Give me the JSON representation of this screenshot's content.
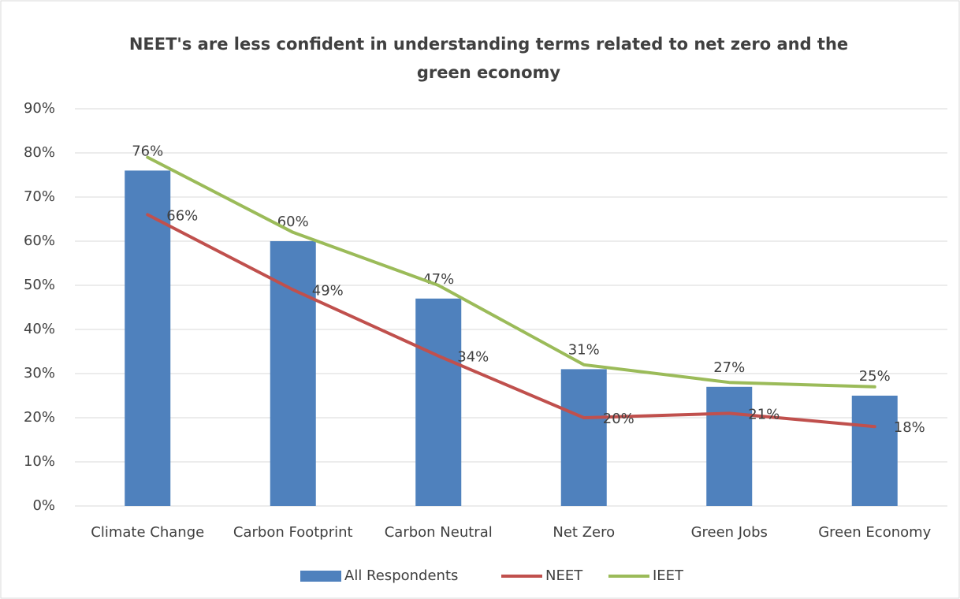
{
  "chart_data": {
    "type": "bar_line",
    "title": "NEET's are less confident in understanding terms related to net zero and the green economy",
    "categories": [
      "Climate Change",
      "Carbon Footprint",
      "Carbon Neutral",
      "Net Zero",
      "Green Jobs",
      "Green Economy"
    ],
    "series": [
      {
        "name": "All Respondents",
        "type": "bar",
        "color": "#4f81bd",
        "values": [
          76,
          60,
          47,
          31,
          27,
          25
        ],
        "value_labels": [
          "76%",
          "60%",
          "47%",
          "31%",
          "27%",
          "25%"
        ]
      },
      {
        "name": "NEET",
        "type": "line",
        "color": "#c0504d",
        "values": [
          66,
          49,
          34,
          20,
          21,
          18
        ],
        "value_labels": [
          "66%",
          "49%",
          "34%",
          "20%",
          "21%",
          "18%"
        ]
      },
      {
        "name": "IEET",
        "type": "line",
        "color": "#9bbb59",
        "values": [
          79,
          62,
          50,
          32,
          28,
          27
        ]
      }
    ],
    "ylim": [
      0,
      90
    ],
    "yticks": [
      {
        "value": 0,
        "label": "0%"
      },
      {
        "value": 10,
        "label": "10%"
      },
      {
        "value": 20,
        "label": "20%"
      },
      {
        "value": 30,
        "label": "30%"
      },
      {
        "value": 40,
        "label": "40%"
      },
      {
        "value": 50,
        "label": "50%"
      },
      {
        "value": 60,
        "label": "60%"
      },
      {
        "value": 70,
        "label": "70%"
      },
      {
        "value": 80,
        "label": "80%"
      },
      {
        "value": 90,
        "label": "90%"
      }
    ],
    "grid": true,
    "legend": "bottom"
  }
}
